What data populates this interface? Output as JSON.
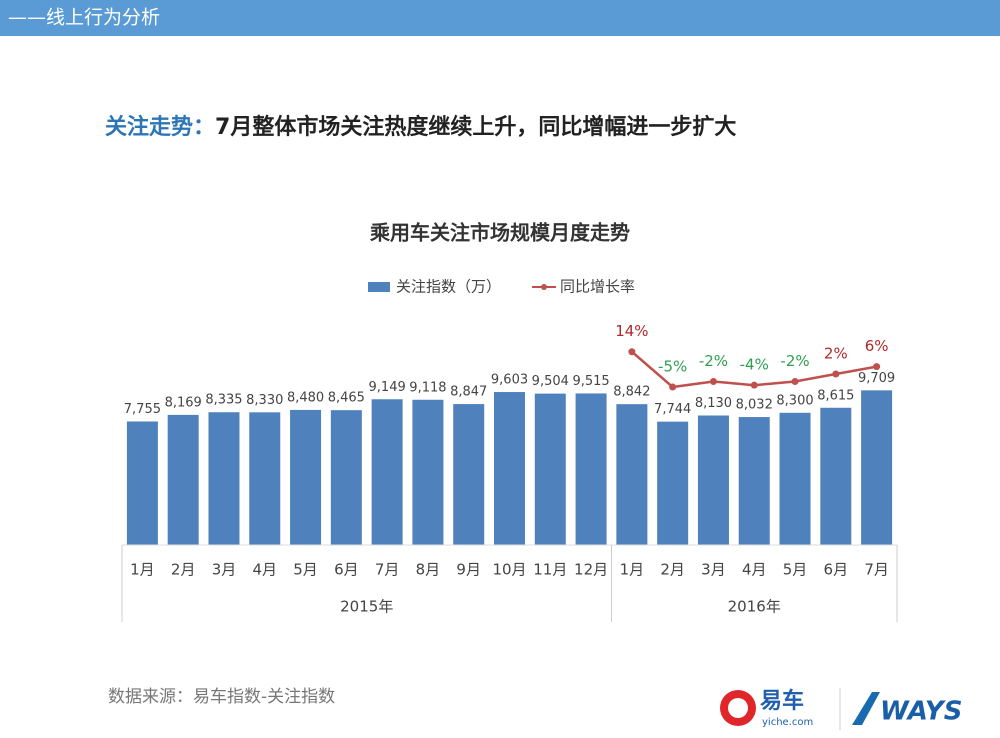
{
  "header": {
    "section": "——线上行为分析"
  },
  "headline": {
    "topic": "关注走势：",
    "text": "7月整体市场关注热度继续上升，同比增幅进一步扩大"
  },
  "chart_data": {
    "type": "bar",
    "title": "乘用车关注市场规模月度走势",
    "categories": [
      "1月",
      "2月",
      "3月",
      "4月",
      "5月",
      "6月",
      "7月",
      "8月",
      "9月",
      "10月",
      "11月",
      "12月",
      "1月",
      "2月",
      "3月",
      "4月",
      "5月",
      "6月",
      "7月"
    ],
    "category_groups": [
      {
        "label": "2015年",
        "span": 12
      },
      {
        "label": "2016年",
        "span": 7
      }
    ],
    "series": [
      {
        "name": "关注指数（万）",
        "type": "bar",
        "color": "#4f81bd",
        "values": [
          7755,
          8169,
          8335,
          8330,
          8480,
          8465,
          9149,
          9118,
          8847,
          9603,
          9504,
          9515,
          8842,
          7744,
          8130,
          8032,
          8300,
          8615,
          9709
        ],
        "value_labels": [
          "7,755",
          "8,169",
          "8,335",
          "8,330",
          "8,480",
          "8,465",
          "9,149",
          "9,118",
          "8,847",
          "9,603",
          "9,504",
          "9,515",
          "8,842",
          "7,744",
          "8,130",
          "8,032",
          "8,300",
          "8,615",
          "9,709"
        ]
      },
      {
        "name": "同比增长率",
        "type": "line",
        "axis": "y2",
        "color": "#c0504d",
        "values": [
          null,
          null,
          null,
          null,
          null,
          null,
          null,
          null,
          null,
          null,
          null,
          null,
          14,
          -5,
          -2,
          -4,
          -2,
          2,
          6
        ],
        "value_labels": [
          null,
          null,
          null,
          null,
          null,
          null,
          null,
          null,
          null,
          null,
          null,
          null,
          "14%",
          "-5%",
          "-2%",
          "-4%",
          "-2%",
          "2%",
          "6%"
        ],
        "positive_label_color": "#b02a2a",
        "negative_label_color": "#2e9e4f"
      }
    ],
    "ylim": [
      0,
      14000
    ],
    "y2lim": [
      -90,
      30
    ],
    "legend": "top"
  },
  "footer": {
    "source": "数据来源：易车指数-关注指数",
    "logo1": "易车",
    "logo1_sub": "yiche.com",
    "logo2": "WAYS"
  }
}
